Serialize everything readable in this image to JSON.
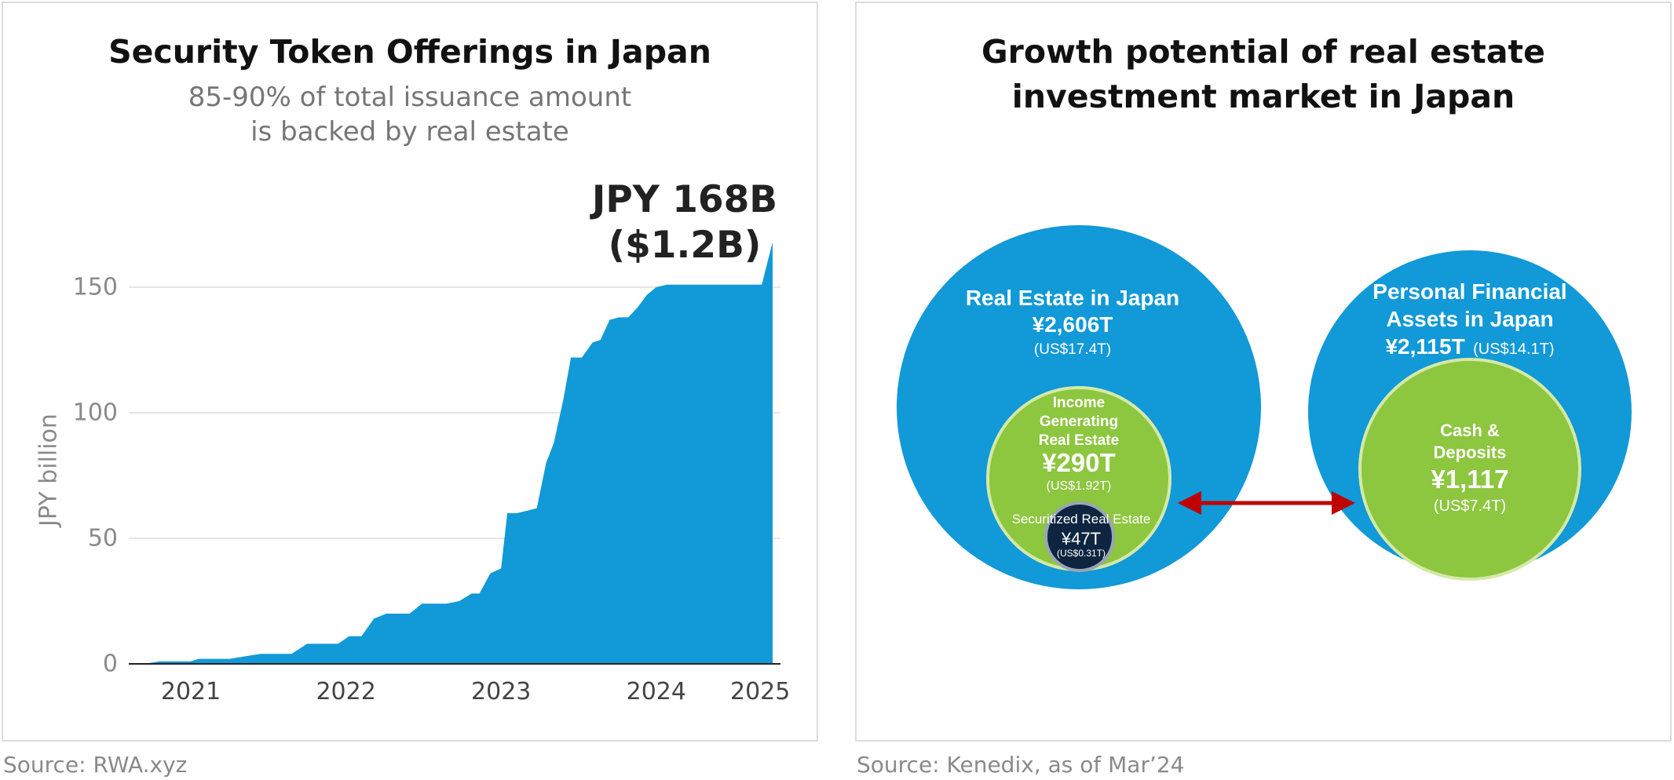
{
  "left": {
    "title": "Security Token Offerings in Japan",
    "subtitle_line1": "85-90% of total issuance amount",
    "subtitle_line2": "is backed by real estate",
    "callout_line1": "JPY 168B",
    "callout_line2": "($1.2B)",
    "source": "Source: RWA.xyz"
  },
  "right": {
    "title_line1": "Growth potential of real estate",
    "title_line2": "investment market in Japan",
    "source": "Source: Kenedix, as of Mar’24",
    "re_japan": {
      "label": "Real Estate in Japan",
      "value": "¥2,606T",
      "usd": "(US$17.4T)"
    },
    "income_re": {
      "line1": "Income",
      "line2": "Generating",
      "line3": "Real Estate",
      "value": "¥290T",
      "usd": "(US$1.92T)"
    },
    "securitized": {
      "label": "Securitized Real Estate",
      "value": "¥47T",
      "usd": "(US$0.31T)"
    },
    "pfa": {
      "line1": "Personal Financial",
      "line2": "Assets in Japan",
      "value": "¥2,115T",
      "usd": "(US$14.1T)"
    },
    "cash": {
      "line1": "Cash &",
      "line2": "Deposits",
      "value": "¥1,117",
      "usd": "(US$7.4T)"
    },
    "colors": {
      "outer": "#1199d8",
      "inner": "#8dc63f",
      "inner_border": "#d4e9a8",
      "small": "#0d2540",
      "arrow": "#c00000"
    }
  },
  "chart_data": {
    "type": "area",
    "ylabel": "JPY billion",
    "xlabel": "",
    "ylim": [
      0,
      168
    ],
    "yticks": [
      0,
      50,
      100,
      150
    ],
    "xticks": [
      {
        "label": "2021",
        "x": 2021.0
      },
      {
        "label": "2022",
        "x": 2022.0
      },
      {
        "label": "2023",
        "x": 2023.0
      },
      {
        "label": "2024",
        "x": 2024.0
      },
      {
        "label": "2025",
        "x": 2024.67
      }
    ],
    "xlim": [
      2020.6,
      2024.75
    ],
    "grid": true,
    "color": "#1199d8",
    "x": [
      2020.6,
      2020.7,
      2020.8,
      2020.9,
      2021.0,
      2021.05,
      2021.15,
      2021.25,
      2021.35,
      2021.45,
      2021.55,
      2021.65,
      2021.75,
      2021.85,
      2021.95,
      2022.02,
      2022.1,
      2022.18,
      2022.26,
      2022.33,
      2022.41,
      2022.49,
      2022.57,
      2022.65,
      2022.73,
      2022.81,
      2022.86,
      2022.93,
      2023.0,
      2023.04,
      2023.1,
      2023.17,
      2023.23,
      2023.29,
      2023.34,
      2023.4,
      2023.45,
      2023.52,
      2023.59,
      2023.64,
      2023.7,
      2023.76,
      2023.82,
      2023.88,
      2023.94,
      2024.0,
      2024.07,
      2024.14,
      2024.2,
      2024.27,
      2024.33,
      2024.39,
      2024.44,
      2024.5,
      2024.55,
      2024.62,
      2024.68,
      2024.75
    ],
    "y": [
      0,
      0,
      1,
      1,
      1,
      2,
      2,
      2,
      3,
      4,
      4,
      4,
      8,
      8,
      8,
      11,
      11,
      18,
      20,
      20,
      20,
      24,
      24,
      24,
      25,
      28,
      28,
      36,
      38,
      60,
      60,
      61,
      62,
      80,
      88,
      105,
      122,
      122,
      128,
      129,
      137,
      138,
      138,
      142,
      147,
      150,
      151,
      151,
      151,
      151,
      151,
      151,
      151,
      151,
      151,
      151,
      151,
      168
    ]
  }
}
